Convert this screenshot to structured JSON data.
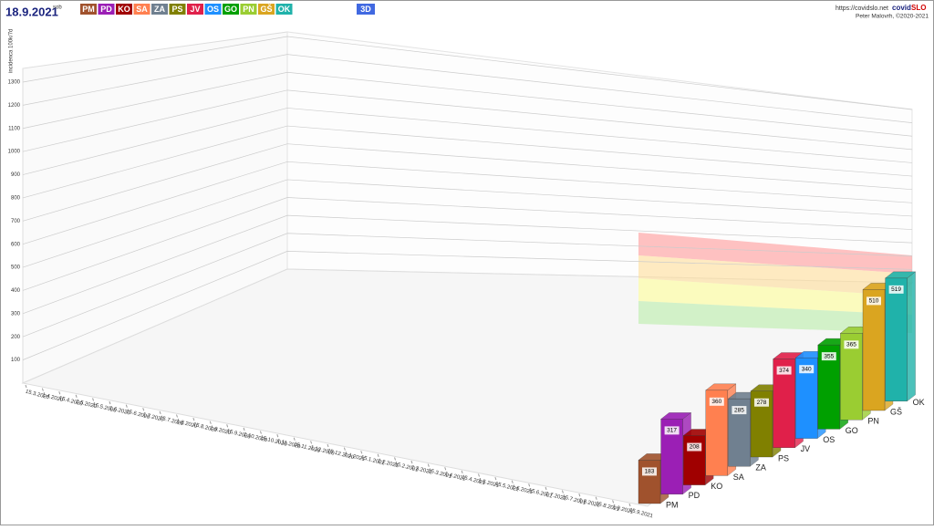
{
  "header": {
    "date": "18.9.2021",
    "weekday": "sob",
    "view_button": "3D",
    "url": "https://covidslo.net",
    "brand_main": "covid",
    "brand_accent": "SLO",
    "author": "Peter Malovrh, ©2020-2021"
  },
  "chart_data": {
    "type": "bar3d",
    "y_label": "incidenca 100k/7d",
    "categories": [
      "PM",
      "PD",
      "KO",
      "SA",
      "ZA",
      "PS",
      "JV",
      "OS",
      "GO",
      "PN",
      "GŠ",
      "OK"
    ],
    "colors": [
      "#a0522d",
      "#9b1fb5",
      "#a00000",
      "#ff8050",
      "#708090",
      "#808000",
      "#e0204a",
      "#1e90ff",
      "#00a000",
      "#9acd32",
      "#daa520",
      "#20b2aa"
    ],
    "values": [
      183,
      317,
      208,
      360,
      285,
      278,
      374,
      340,
      355,
      365,
      510,
      519
    ],
    "ylim": [
      0,
      1300
    ],
    "yticks": [
      100,
      200,
      300,
      400,
      500,
      600,
      700,
      800,
      900,
      1000,
      1100,
      1200,
      1300
    ],
    "x_dates": [
      "15.3.2020",
      "1.4.2020",
      "15.4.2020",
      "1.5.2020",
      "15.5.2020",
      "1.6.2020",
      "15.6.2020",
      "1.7.2020",
      "15.7.2020",
      "1.8.2020",
      "15.8.2020",
      "1.9.2020",
      "15.9.2020",
      "1.10.2020",
      "15.10.2020",
      "1.11.2020",
      "15.11.2020",
      "1.12.2020",
      "15.12.2020",
      "1.1.2021",
      "15.1.2021",
      "1.2.2021",
      "15.2.2021",
      "1.3.2021",
      "15.3.2021",
      "1.4.2021",
      "15.4.2021",
      "1.5.2021",
      "15.5.2021",
      "1.6.2021",
      "15.6.2021",
      "1.7.2021",
      "15.7.2021",
      "1.8.2021",
      "15.8.2021",
      "1.9.2021",
      "15.9.2021"
    ],
    "grid": true
  }
}
